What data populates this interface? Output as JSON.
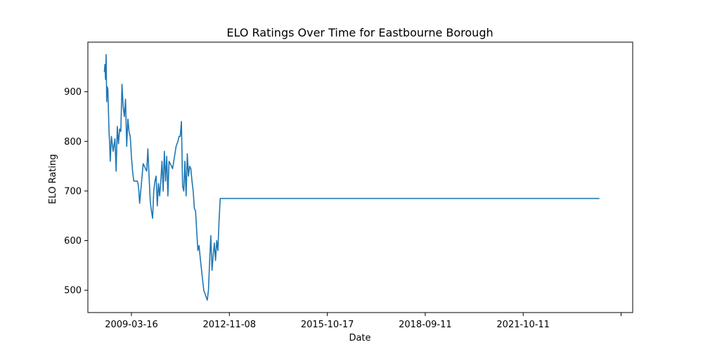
{
  "chart_data": {
    "type": "line",
    "title": "ELO Ratings Over Time for Eastbourne Borough",
    "xlabel": "Date",
    "ylabel": "ELO Rating",
    "x_ticks": [
      "2009-03-16",
      "2012-11-08",
      "2015-10-17",
      "2018-09-11",
      "2021-10-11",
      ""
    ],
    "y_ticks": [
      500,
      600,
      700,
      800,
      900
    ],
    "ylim": [
      455,
      1000
    ],
    "xlim": [
      "2007-09-01",
      "2025-06-01"
    ],
    "grid": false,
    "line_color": "#1f77b4",
    "series": [
      {
        "x": [
          "2008-03-15",
          "2008-03-22",
          "2008-03-29",
          "2008-04-05",
          "2008-04-12",
          "2008-04-19",
          "2008-04-26",
          "2008-05-03",
          "2008-05-10",
          "2008-05-17",
          "2008-05-24",
          "2008-06-07",
          "2008-06-14",
          "2008-06-28",
          "2008-07-19",
          "2008-08-02",
          "2008-08-16",
          "2008-08-30",
          "2008-09-13",
          "2008-09-27",
          "2008-10-11",
          "2008-10-25",
          "2008-11-08",
          "2008-11-22",
          "2008-12-06",
          "2008-12-20",
          "2009-01-03",
          "2009-01-17",
          "2009-01-31",
          "2009-02-14",
          "2009-02-28",
          "2009-03-14",
          "2009-03-28",
          "2009-04-11",
          "2009-04-25",
          "2009-05-09",
          "2009-06-20",
          "2009-08-01",
          "2009-08-15",
          "2009-08-29",
          "2009-09-12",
          "2009-09-26",
          "2009-10-10",
          "2009-10-24",
          "2009-11-07",
          "2009-11-21",
          "2009-12-05",
          "2009-12-19",
          "2010-01-02",
          "2010-01-16",
          "2010-01-30",
          "2010-02-13",
          "2010-02-27",
          "2010-03-13",
          "2010-03-27",
          "2010-04-10",
          "2010-04-24",
          "2010-06-05",
          "2010-07-17",
          "2010-08-07",
          "2010-08-21",
          "2010-09-04",
          "2010-09-18",
          "2010-10-02",
          "2010-10-16",
          "2010-10-30",
          "2010-11-13",
          "2010-11-27",
          "2010-12-11",
          "2010-12-25",
          "2011-01-08",
          "2011-01-22",
          "2011-02-05",
          "2011-02-19",
          "2011-03-05",
          "2011-03-19",
          "2011-04-02",
          "2011-04-16",
          "2011-04-30",
          "2011-06-11",
          "2011-07-23",
          "2011-08-06",
          "2011-08-20",
          "2011-09-03",
          "2011-09-17",
          "2011-10-01",
          "2011-10-15",
          "2011-10-29",
          "2011-11-12",
          "2011-11-26",
          "2011-12-10",
          "2011-12-24",
          "2012-01-07",
          "2012-01-21",
          "2012-02-04",
          "2012-02-18",
          "2012-03-03",
          "2012-03-17",
          "2012-03-31",
          "2012-04-14",
          "2012-04-28",
          "2012-05-12",
          "2012-06-30",
          "2024-05-01"
        ],
        "values": [
          940,
          955,
          925,
          975,
          880,
          910,
          905,
          860,
          820,
          795,
          760,
          810,
          800,
          780,
          805,
          740,
          830,
          795,
          825,
          820,
          915,
          870,
          850,
          885,
          790,
          845,
          820,
          810,
          770,
          740,
          720,
          720,
          720,
          720,
          710,
          675,
          755,
          740,
          785,
          730,
          680,
          660,
          645,
          700,
          720,
          730,
          670,
          715,
          690,
          720,
          760,
          700,
          780,
          720,
          770,
          690,
          760,
          745,
          790,
          800,
          810,
          810,
          840,
          710,
          700,
          760,
          690,
          775,
          730,
          750,
          745,
          720,
          700,
          665,
          660,
          620,
          580,
          590,
          565,
          500,
          480,
          500,
          560,
          610,
          540,
          570,
          595,
          560,
          600,
          580,
          640,
          685,
          685,
          685,
          685,
          685,
          685,
          685,
          685,
          685,
          685,
          685,
          685,
          685
        ]
      }
    ]
  }
}
